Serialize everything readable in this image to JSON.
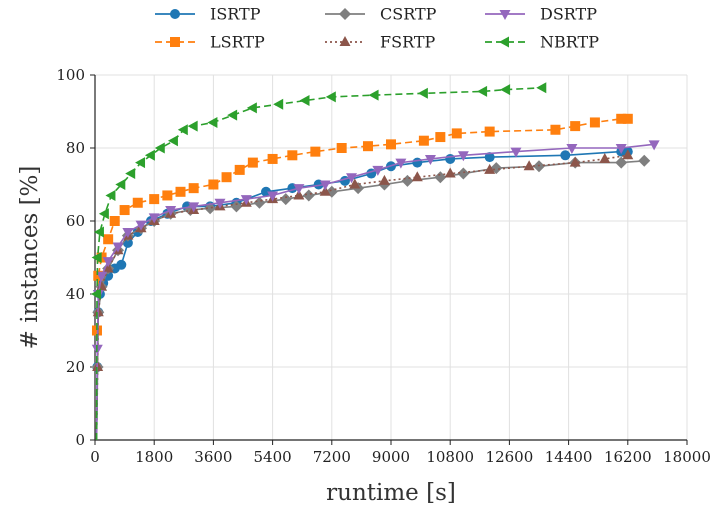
{
  "chart_data": {
    "type": "line",
    "xlabel": "runtime [s]",
    "ylabel": "# instances [%]",
    "xlim": [
      0,
      18000
    ],
    "ylim": [
      0,
      100
    ],
    "xticks": [
      0,
      1800,
      3600,
      5400,
      7200,
      9000,
      10800,
      12600,
      14400,
      16200,
      18000
    ],
    "yticks": [
      0,
      20,
      40,
      60,
      80,
      100
    ],
    "grid": true,
    "legend_placement": "top, above plot, 3 columns",
    "series": [
      {
        "name": "ISRTP",
        "color": "#1f77b4",
        "linestyle": "solid",
        "marker": "circle",
        "points": [
          [
            50,
            0
          ],
          [
            70,
            20
          ],
          [
            100,
            35
          ],
          [
            150,
            40
          ],
          [
            250,
            43
          ],
          [
            400,
            45
          ],
          [
            600,
            47
          ],
          [
            800,
            48
          ],
          [
            1000,
            54
          ],
          [
            1300,
            57
          ],
          [
            1700,
            60
          ],
          [
            2200,
            62
          ],
          [
            2800,
            64
          ],
          [
            3500,
            64
          ],
          [
            4300,
            65
          ],
          [
            5200,
            68
          ],
          [
            6000,
            69
          ],
          [
            6800,
            70
          ],
          [
            7600,
            71
          ],
          [
            8400,
            73
          ],
          [
            9000,
            75
          ],
          [
            9800,
            76
          ],
          [
            10800,
            77
          ],
          [
            12000,
            77.5
          ],
          [
            14300,
            78
          ],
          [
            16000,
            79
          ],
          [
            16200,
            79
          ]
        ]
      },
      {
        "name": "LSRTP",
        "color": "#ff7f0e",
        "linestyle": "dashed",
        "marker": "square",
        "points": [
          [
            50,
            0
          ],
          [
            60,
            30
          ],
          [
            100,
            45
          ],
          [
            200,
            50
          ],
          [
            400,
            55
          ],
          [
            600,
            60
          ],
          [
            900,
            63
          ],
          [
            1300,
            65
          ],
          [
            1800,
            66
          ],
          [
            2200,
            67
          ],
          [
            2600,
            68
          ],
          [
            3000,
            69
          ],
          [
            3600,
            70
          ],
          [
            4000,
            72
          ],
          [
            4400,
            74
          ],
          [
            4800,
            76
          ],
          [
            5400,
            77
          ],
          [
            6000,
            78
          ],
          [
            6700,
            79
          ],
          [
            7500,
            80
          ],
          [
            8300,
            80.5
          ],
          [
            9000,
            81
          ],
          [
            10000,
            82
          ],
          [
            10500,
            83
          ],
          [
            11000,
            84
          ],
          [
            12000,
            84.5
          ],
          [
            14000,
            85
          ],
          [
            14600,
            86
          ],
          [
            15200,
            87
          ],
          [
            16000,
            88
          ],
          [
            16200,
            88
          ]
        ]
      },
      {
        "name": "CSRTP",
        "color": "#7f7f7f",
        "linestyle": "solid",
        "marker": "diamond",
        "points": [
          [
            50,
            0
          ],
          [
            80,
            20
          ],
          [
            100,
            35
          ],
          [
            200,
            42
          ],
          [
            400,
            47
          ],
          [
            700,
            52
          ],
          [
            1000,
            56
          ],
          [
            1400,
            58
          ],
          [
            1800,
            60
          ],
          [
            2300,
            62
          ],
          [
            2900,
            63
          ],
          [
            3500,
            63.5
          ],
          [
            4300,
            64
          ],
          [
            5000,
            65
          ],
          [
            5800,
            66
          ],
          [
            6500,
            67
          ],
          [
            7200,
            68
          ],
          [
            8000,
            69
          ],
          [
            8800,
            70
          ],
          [
            9500,
            71
          ],
          [
            10500,
            72
          ],
          [
            11200,
            73
          ],
          [
            12200,
            74.5
          ],
          [
            13500,
            75
          ],
          [
            14600,
            76
          ],
          [
            16000,
            76
          ],
          [
            16700,
            76.5
          ]
        ]
      },
      {
        "name": "FSRTP",
        "color": "#8c564b",
        "linestyle": "dotted",
        "marker": "triangle-up",
        "points": [
          [
            50,
            0
          ],
          [
            80,
            20
          ],
          [
            100,
            35
          ],
          [
            200,
            42
          ],
          [
            400,
            47
          ],
          [
            700,
            52
          ],
          [
            1000,
            56
          ],
          [
            1400,
            58
          ],
          [
            1800,
            60
          ],
          [
            2300,
            62
          ],
          [
            3000,
            63
          ],
          [
            3800,
            64
          ],
          [
            4600,
            65
          ],
          [
            5400,
            66
          ],
          [
            6200,
            67
          ],
          [
            7000,
            68
          ],
          [
            7900,
            70
          ],
          [
            8800,
            71
          ],
          [
            9800,
            72
          ],
          [
            10800,
            73
          ],
          [
            12000,
            74
          ],
          [
            13200,
            75
          ],
          [
            14600,
            76
          ],
          [
            15500,
            77
          ],
          [
            16200,
            78
          ]
        ]
      },
      {
        "name": "DSRTP",
        "color": "#9467bd",
        "linestyle": "solid",
        "marker": "triangle-down",
        "points": [
          [
            50,
            0
          ],
          [
            70,
            25
          ],
          [
            100,
            40
          ],
          [
            200,
            45
          ],
          [
            400,
            49
          ],
          [
            700,
            53
          ],
          [
            1000,
            57
          ],
          [
            1400,
            59
          ],
          [
            1800,
            61
          ],
          [
            2300,
            63
          ],
          [
            3000,
            64
          ],
          [
            3800,
            65
          ],
          [
            4600,
            66
          ],
          [
            5400,
            67
          ],
          [
            6200,
            69
          ],
          [
            7000,
            70
          ],
          [
            7800,
            72
          ],
          [
            8600,
            74
          ],
          [
            9300,
            76
          ],
          [
            10200,
            77
          ],
          [
            11200,
            78
          ],
          [
            12800,
            79
          ],
          [
            14500,
            80
          ],
          [
            16000,
            80
          ],
          [
            17000,
            81
          ]
        ]
      },
      {
        "name": "NBRTP",
        "color": "#2ca02c",
        "linestyle": "dashed",
        "marker": "triangle-left",
        "points": [
          [
            50,
            0
          ],
          [
            60,
            40
          ],
          [
            80,
            50
          ],
          [
            150,
            57
          ],
          [
            300,
            62
          ],
          [
            500,
            67
          ],
          [
            800,
            70
          ],
          [
            1100,
            73
          ],
          [
            1400,
            76
          ],
          [
            1700,
            78
          ],
          [
            2000,
            80
          ],
          [
            2400,
            82
          ],
          [
            2700,
            85
          ],
          [
            3000,
            86
          ],
          [
            3600,
            87
          ],
          [
            4200,
            89
          ],
          [
            4800,
            91
          ],
          [
            5600,
            92
          ],
          [
            6400,
            93
          ],
          [
            7200,
            94
          ],
          [
            8500,
            94.5
          ],
          [
            10000,
            95
          ],
          [
            11800,
            95.5
          ],
          [
            12500,
            96
          ],
          [
            13600,
            96.5
          ]
        ]
      }
    ]
  }
}
